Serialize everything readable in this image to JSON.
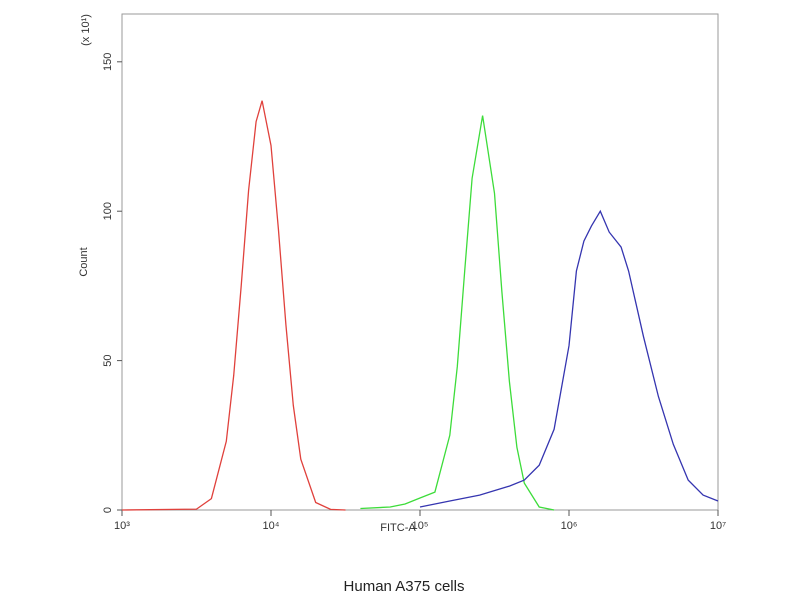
{
  "chart_data": {
    "type": "line",
    "xscale": "log",
    "x_label": "FITC-A",
    "y_label": "Count",
    "y_multiplier": "(x 10¹)",
    "caption": "Human A375 cells",
    "xlim": [
      1000,
      10000000
    ],
    "xticks": [
      {
        "value": 1000,
        "label": "10³"
      },
      {
        "value": 10000,
        "label": "10⁴"
      },
      {
        "value": 100000,
        "label": "10⁵"
      },
      {
        "value": 1000000,
        "label": "10⁶"
      },
      {
        "value": 10000000,
        "label": "10⁷"
      }
    ],
    "ylim": [
      0,
      166
    ],
    "yticks": [
      0,
      50,
      100,
      150
    ],
    "series": [
      {
        "color": "#e0413c",
        "x": [
          1000,
          3162,
          3981,
          5012,
          5623,
          6310,
          7079,
          7943,
          8710,
          10000,
          11220,
          12589,
          14125,
          15849,
          19953,
          25119,
          31623
        ],
        "values": [
          0,
          0.3,
          3.8,
          23,
          45,
          75,
          107,
          130,
          137,
          122,
          94,
          62,
          35,
          17,
          2.5,
          0.2,
          0
        ]
      },
      {
        "color": "#3ddc3a",
        "x": [
          39811,
          63096,
          79433,
          100000,
          125893,
          158489,
          177828,
          199526,
          223872,
          263027,
          316228,
          354813,
          398107,
          446684,
          501187,
          630957,
          794328
        ],
        "values": [
          0.5,
          1,
          2,
          4,
          6,
          25,
          48,
          80,
          111,
          132,
          106,
          73,
          43,
          21,
          9,
          1,
          0
        ]
      },
      {
        "color": "#3535b0",
        "x": [
          100000,
          158489,
          251189,
          398107,
          501187,
          630957,
          794328,
          1000000,
          1122018,
          1258925,
          1412538,
          1621810,
          1862087,
          2238721,
          2511886,
          3162278,
          3981072,
          5011872,
          6309573,
          7943282,
          10000000
        ],
        "values": [
          1,
          3,
          5,
          8,
          10,
          15,
          27,
          55,
          80,
          90,
          95,
          100,
          93,
          88,
          80,
          58,
          38,
          22,
          10,
          5,
          3
        ]
      }
    ]
  }
}
